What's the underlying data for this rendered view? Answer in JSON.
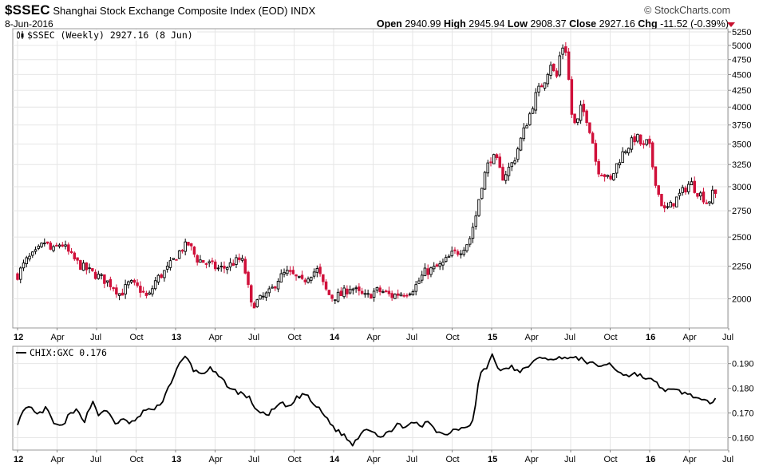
{
  "header": {
    "symbol": "$SSEC",
    "name": "Shanghai Stock Exchange Composite Index (EOD)",
    "exchange": "INDX",
    "date": "8-Jun-2016",
    "brand": "© StockCharts.com",
    "open_label": "Open",
    "open": "2940.99",
    "high_label": "High",
    "high": "2945.94",
    "low_label": "Low",
    "low": "2908.37",
    "close_label": "Close",
    "close": "2927.16",
    "chg_label": "Chg",
    "chg": "-11.52 (-0.39%)",
    "up_color": "#000000",
    "down_color": "#d0103a"
  },
  "chart_data": [
    {
      "type": "candlestick",
      "legend": "$SSEC (Weekly) 2927.16 (8 Jun)",
      "scale": "log",
      "ylim": [
        1800,
        5250
      ],
      "yticks": [
        2000,
        2250,
        2500,
        2750,
        3000,
        3250,
        3500,
        3750,
        4000,
        4250,
        4500,
        4750,
        5000,
        5250
      ],
      "x_ticks": [
        {
          "label": "12",
          "t": 0,
          "bold": true
        },
        {
          "label": "Apr",
          "t": 3,
          "bold": false
        },
        {
          "label": "Jul",
          "t": 6,
          "bold": false
        },
        {
          "label": "Oct",
          "t": 9,
          "bold": false
        },
        {
          "label": "13",
          "t": 12,
          "bold": true
        },
        {
          "label": "Apr",
          "t": 15,
          "bold": false
        },
        {
          "label": "Jul",
          "t": 18,
          "bold": false
        },
        {
          "label": "Oct",
          "t": 21,
          "bold": false
        },
        {
          "label": "14",
          "t": 24,
          "bold": true
        },
        {
          "label": "Apr",
          "t": 27,
          "bold": false
        },
        {
          "label": "Jul",
          "t": 30,
          "bold": false
        },
        {
          "label": "Oct",
          "t": 33,
          "bold": false
        },
        {
          "label": "15",
          "t": 36,
          "bold": true
        },
        {
          "label": "Apr",
          "t": 39,
          "bold": false
        },
        {
          "label": "Jul",
          "t": 42,
          "bold": false
        },
        {
          "label": "Oct",
          "t": 45,
          "bold": false
        },
        {
          "label": "16",
          "t": 48,
          "bold": true
        },
        {
          "label": "Apr",
          "t": 51,
          "bold": false
        },
        {
          "label": "Jul",
          "t": 54,
          "bold": false
        }
      ],
      "anchors": [
        [
          0,
          2180
        ],
        [
          0.7,
          2300
        ],
        [
          1.4,
          2360
        ],
        [
          2.1,
          2460
        ],
        [
          2.6,
          2370
        ],
        [
          3.3,
          2450
        ],
        [
          4.1,
          2330
        ],
        [
          4.7,
          2260
        ],
        [
          5.6,
          2200
        ],
        [
          6.3,
          2160
        ],
        [
          7.2,
          2100
        ],
        [
          7.8,
          2030
        ],
        [
          8.5,
          2120
        ],
        [
          9.3,
          2070
        ],
        [
          9.9,
          2000
        ],
        [
          10.5,
          2140
        ],
        [
          11.4,
          2230
        ],
        [
          12.4,
          2390
        ],
        [
          13.0,
          2440
        ],
        [
          13.6,
          2310
        ],
        [
          14.5,
          2270
        ],
        [
          15.2,
          2230
        ],
        [
          15.8,
          2240
        ],
        [
          16.4,
          2280
        ],
        [
          17.0,
          2310
        ],
        [
          17.4,
          2160
        ],
        [
          17.7,
          1950
        ],
        [
          18.5,
          2000
        ],
        [
          19.2,
          2050
        ],
        [
          19.8,
          2150
        ],
        [
          20.4,
          2200
        ],
        [
          21.0,
          2170
        ],
        [
          21.6,
          2120
        ],
        [
          22.2,
          2190
        ],
        [
          22.8,
          2220
        ],
        [
          23.3,
          2080
        ],
        [
          23.8,
          2010
        ],
        [
          24.6,
          2030
        ],
        [
          25.3,
          2090
        ],
        [
          25.9,
          2040
        ],
        [
          26.5,
          2010
        ],
        [
          27.2,
          2060
        ],
        [
          27.8,
          2050
        ],
        [
          28.4,
          2020
        ],
        [
          29.0,
          2040
        ],
        [
          29.6,
          2050
        ],
        [
          30.2,
          2090
        ],
        [
          30.9,
          2200
        ],
        [
          31.6,
          2230
        ],
        [
          32.2,
          2260
        ],
        [
          33.0,
          2350
        ],
        [
          33.6,
          2380
        ],
        [
          34.3,
          2470
        ],
        [
          34.8,
          2700
        ],
        [
          35.2,
          3000
        ],
        [
          35.6,
          3200
        ],
        [
          36.0,
          3350
        ],
        [
          36.4,
          3280
        ],
        [
          36.8,
          3100
        ],
        [
          37.2,
          3180
        ],
        [
          37.7,
          3300
        ],
        [
          38.3,
          3600
        ],
        [
          38.9,
          3900
        ],
        [
          39.4,
          4200
        ],
        [
          40.0,
          4400
        ],
        [
          40.5,
          4700
        ],
        [
          40.9,
          4400
        ],
        [
          41.3,
          5000
        ],
        [
          41.7,
          4900
        ],
        [
          42.0,
          3950
        ],
        [
          42.4,
          3700
        ],
        [
          42.8,
          4000
        ],
        [
          43.2,
          3850
        ],
        [
          43.6,
          3600
        ],
        [
          44.0,
          3200
        ],
        [
          44.5,
          3150
        ],
        [
          45.0,
          3050
        ],
        [
          45.5,
          3250
        ],
        [
          46.0,
          3400
        ],
        [
          46.5,
          3500
        ],
        [
          47.0,
          3600
        ],
        [
          47.5,
          3450
        ],
        [
          47.9,
          3550
        ],
        [
          48.2,
          3250
        ],
        [
          48.6,
          2950
        ],
        [
          49.1,
          2750
        ],
        [
          49.6,
          2800
        ],
        [
          50.2,
          2900
        ],
        [
          50.7,
          2980
        ],
        [
          51.1,
          3050
        ],
        [
          51.5,
          2960
        ],
        [
          52.0,
          2900
        ],
        [
          52.4,
          2820
        ],
        [
          52.8,
          2930
        ],
        [
          53.0,
          2927
        ]
      ]
    },
    {
      "type": "line",
      "legend": "CHIX:GXC 0.176",
      "ylim": [
        0.155,
        0.197
      ],
      "yticks": [
        "0.160",
        "0.170",
        "0.180",
        "0.190"
      ],
      "anchors": [
        [
          0,
          0.166
        ],
        [
          0.5,
          0.171
        ],
        [
          1.0,
          0.172
        ],
        [
          1.5,
          0.169
        ],
        [
          2.2,
          0.172
        ],
        [
          2.7,
          0.166
        ],
        [
          3.3,
          0.164
        ],
        [
          3.9,
          0.169
        ],
        [
          4.5,
          0.171
        ],
        [
          5.1,
          0.167
        ],
        [
          5.7,
          0.175
        ],
        [
          6.2,
          0.169
        ],
        [
          6.8,
          0.171
        ],
        [
          7.4,
          0.166
        ],
        [
          8.0,
          0.167
        ],
        [
          8.6,
          0.166
        ],
        [
          9.2,
          0.168
        ],
        [
          9.8,
          0.172
        ],
        [
          10.4,
          0.171
        ],
        [
          11.0,
          0.175
        ],
        [
          11.6,
          0.182
        ],
        [
          12.2,
          0.189
        ],
        [
          12.8,
          0.193
        ],
        [
          13.4,
          0.187
        ],
        [
          14.0,
          0.186
        ],
        [
          14.6,
          0.188
        ],
        [
          15.2,
          0.185
        ],
        [
          15.8,
          0.182
        ],
        [
          16.4,
          0.179
        ],
        [
          17.0,
          0.178
        ],
        [
          17.6,
          0.176
        ],
        [
          18.2,
          0.171
        ],
        [
          18.8,
          0.169
        ],
        [
          19.4,
          0.171
        ],
        [
          20.0,
          0.174
        ],
        [
          20.6,
          0.172
        ],
        [
          21.2,
          0.176
        ],
        [
          21.8,
          0.178
        ],
        [
          22.4,
          0.174
        ],
        [
          23.0,
          0.171
        ],
        [
          23.6,
          0.167
        ],
        [
          24.2,
          0.163
        ],
        [
          24.8,
          0.161
        ],
        [
          25.4,
          0.157
        ],
        [
          25.8,
          0.16
        ],
        [
          26.4,
          0.164
        ],
        [
          27.0,
          0.163
        ],
        [
          27.6,
          0.16
        ],
        [
          28.2,
          0.162
        ],
        [
          28.8,
          0.166
        ],
        [
          29.4,
          0.163
        ],
        [
          30.0,
          0.167
        ],
        [
          30.6,
          0.164
        ],
        [
          31.2,
          0.167
        ],
        [
          31.8,
          0.163
        ],
        [
          32.4,
          0.161
        ],
        [
          33.0,
          0.163
        ],
        [
          33.6,
          0.164
        ],
        [
          34.2,
          0.165
        ],
        [
          34.6,
          0.167
        ],
        [
          35.1,
          0.186
        ],
        [
          35.6,
          0.188
        ],
        [
          36.0,
          0.194
        ],
        [
          36.4,
          0.189
        ],
        [
          36.9,
          0.187
        ],
        [
          37.5,
          0.189
        ],
        [
          38.1,
          0.186
        ],
        [
          38.7,
          0.189
        ],
        [
          39.3,
          0.191
        ],
        [
          40.0,
          0.193
        ],
        [
          40.7,
          0.191
        ],
        [
          41.4,
          0.193
        ],
        [
          42.1,
          0.192
        ],
        [
          42.8,
          0.192
        ],
        [
          43.5,
          0.19
        ],
        [
          44.2,
          0.189
        ],
        [
          44.9,
          0.19
        ],
        [
          45.6,
          0.187
        ],
        [
          46.3,
          0.185
        ],
        [
          47.0,
          0.186
        ],
        [
          47.7,
          0.184
        ],
        [
          48.3,
          0.183
        ],
        [
          48.9,
          0.18
        ],
        [
          49.5,
          0.179
        ],
        [
          50.1,
          0.179
        ],
        [
          50.7,
          0.178
        ],
        [
          51.3,
          0.177
        ],
        [
          51.9,
          0.175
        ],
        [
          52.5,
          0.174
        ],
        [
          53.0,
          0.176
        ]
      ]
    }
  ]
}
